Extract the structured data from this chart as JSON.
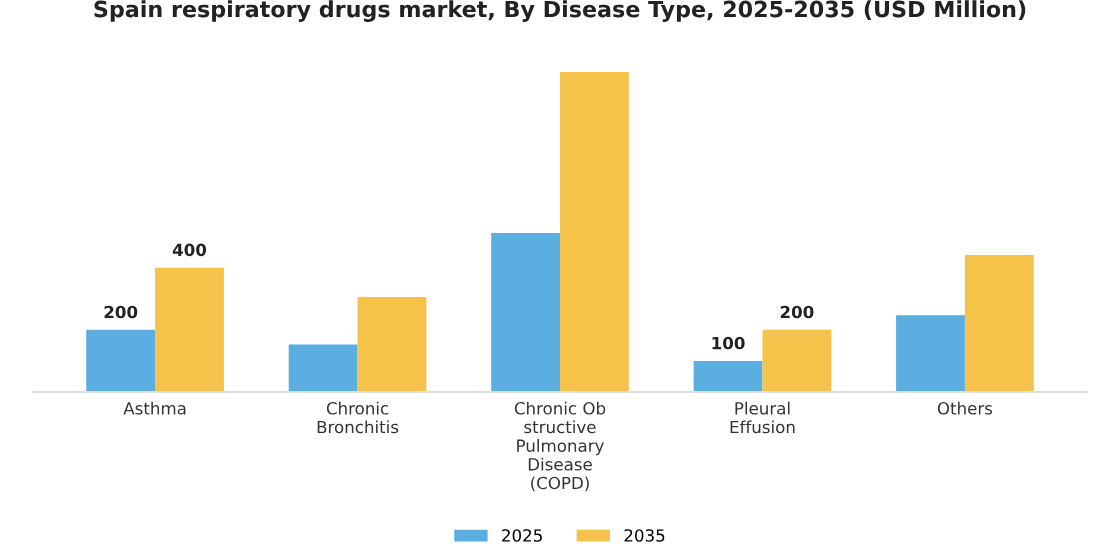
{
  "chart_data": {
    "type": "bar",
    "title": "Spain respiratory drugs market, By Disease Type, 2025-2035 (USD Million)",
    "categories": [
      "Asthma",
      "Chronic\nBronchitis",
      "Chronic Ob\nstructive\nPulmonary\nDisease\n(COPD)",
      "Pleural\nEffusion",
      "Others"
    ],
    "series": [
      {
        "name": "2025",
        "color": "#5aaee0",
        "values": [
          200,
          153,
          512,
          100,
          247
        ],
        "value_labels": [
          "200",
          null,
          null,
          "100",
          null
        ]
      },
      {
        "name": "2035",
        "color": "#f5c34a",
        "values": [
          400,
          306,
          1030,
          200,
          441
        ],
        "value_labels": [
          "400",
          null,
          null,
          "200",
          null
        ]
      }
    ],
    "legend": "bottom",
    "grid": false
  }
}
